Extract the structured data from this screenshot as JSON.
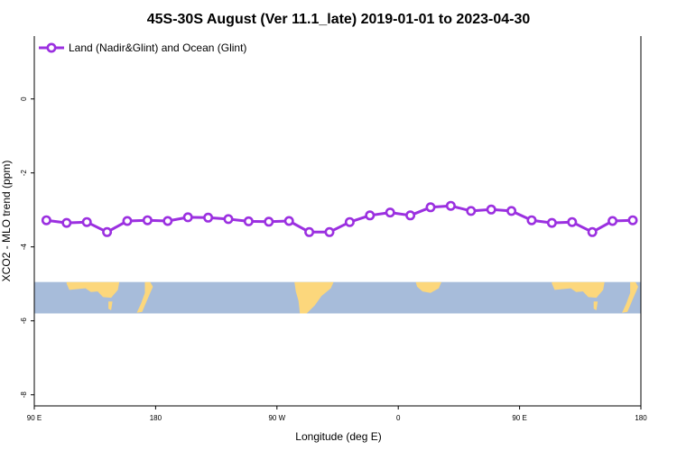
{
  "chart_data": {
    "type": "line",
    "title": "45S-30S August (Ver 11.1_late)   2019-01-01 to 2023-04-30",
    "xlabel": "Longitude (deg E)",
    "ylabel": "XCO2 - MLO trend (ppm)",
    "xlim": [
      90,
      540
    ],
    "ylim": [
      -8.3,
      1.7
    ],
    "x_ticks": [
      {
        "value": 90,
        "label": "90 E"
      },
      {
        "value": 180,
        "label": "180"
      },
      {
        "value": 270,
        "label": "90 W"
      },
      {
        "value": 360,
        "label": "0"
      },
      {
        "value": 450,
        "label": "90 E"
      },
      {
        "value": 540,
        "label": "180"
      }
    ],
    "y_ticks": [
      {
        "value": 0,
        "label": "0"
      },
      {
        "value": -2,
        "label": "-2"
      },
      {
        "value": -4,
        "label": "-4"
      },
      {
        "value": -6,
        "label": "-6"
      },
      {
        "value": -8,
        "label": "-8"
      }
    ],
    "legend_position": "top-left",
    "grid": false,
    "map_strip": {
      "ymin": -5.8,
      "ymax": -4.95,
      "ocean_color": "#a7bcda",
      "land_color": "#fcd77c"
    },
    "series": [
      {
        "name": "Land (Nadir&Glint) and Ocean (Glint)",
        "color": "#9b30e0",
        "x": [
          99,
          114,
          129,
          144,
          159,
          174,
          189,
          204,
          219,
          234,
          249,
          264,
          279,
          294,
          309,
          324,
          339,
          354,
          369,
          384,
          399,
          414,
          429,
          444,
          459,
          474,
          489,
          504,
          519,
          534
        ],
        "values": [
          -3.28,
          -3.35,
          -3.33,
          -3.6,
          -3.3,
          -3.28,
          -3.3,
          -3.2,
          -3.21,
          -3.25,
          -3.31,
          -3.32,
          -3.3,
          -3.6,
          -3.6,
          -3.33,
          -3.15,
          -3.07,
          -3.15,
          -2.93,
          -2.89,
          -3.03,
          -2.99,
          -3.03,
          -3.28,
          -3.35,
          -3.33,
          -3.6,
          -3.3,
          -3.28
        ]
      }
    ]
  }
}
